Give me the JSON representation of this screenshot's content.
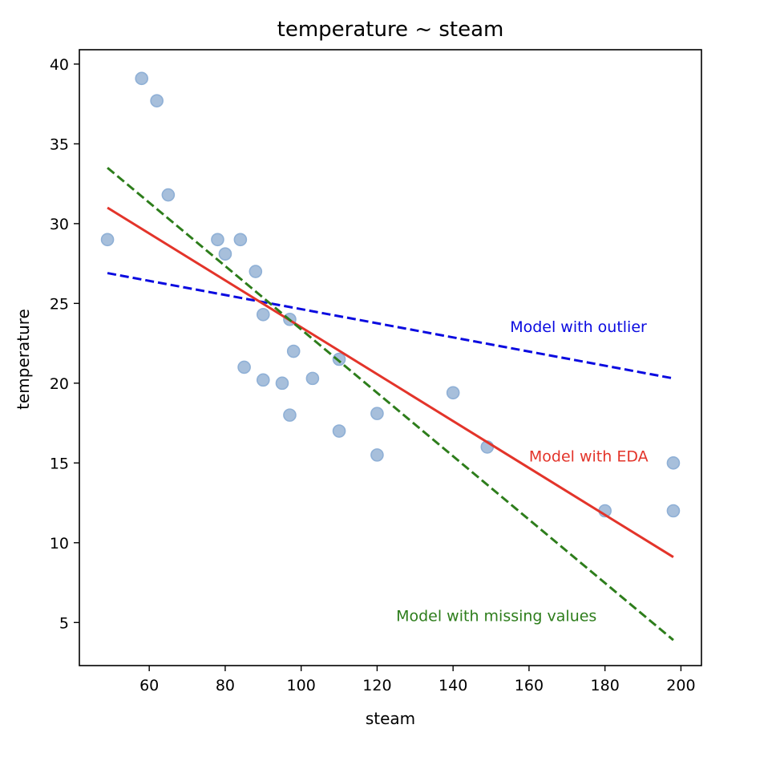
{
  "chart_data": {
    "type": "scatter",
    "title": "temperature ~ steam",
    "xlabel": "steam",
    "ylabel": "temperature",
    "xlim": [
      41.6,
      205.4
    ],
    "ylim": [
      2.3,
      40.9
    ],
    "xticks": [
      60,
      80,
      100,
      120,
      140,
      160,
      180,
      200
    ],
    "yticks": [
      5,
      10,
      15,
      20,
      25,
      30,
      35,
      40
    ],
    "grid": false,
    "points": {
      "color": "#a7bfdb",
      "edge_color": "#8fb0d6",
      "x": [
        49,
        58,
        62,
        65,
        78,
        80,
        84,
        88,
        90,
        97,
        98,
        110,
        85,
        90,
        95,
        103,
        97,
        110,
        120,
        120,
        140,
        149,
        180,
        198,
        198
      ],
      "y": [
        29,
        39.1,
        37.7,
        31.8,
        29,
        28.1,
        29,
        27,
        24.3,
        24,
        22,
        21.5,
        21,
        20.2,
        20,
        20.3,
        18,
        17,
        18.1,
        15.5,
        19.4,
        16,
        12,
        15,
        12
      ]
    },
    "series": [
      {
        "name": "Model with outlier",
        "style": "dashed",
        "color": "#0a0ae0",
        "x": [
          49,
          198
        ],
        "y": [
          26.9,
          20.3
        ]
      },
      {
        "name": "Model with EDA",
        "style": "solid",
        "color": "#e3342a",
        "x": [
          49,
          198
        ],
        "y": [
          31.0,
          9.1
        ]
      },
      {
        "name": "Model with missing values",
        "style": "dashed",
        "color": "#2d7d1b",
        "x": [
          49,
          198
        ],
        "y": [
          33.5,
          3.9
        ]
      }
    ],
    "annotations": [
      {
        "text": "Model with outlier",
        "x": 155,
        "y": 23.2,
        "color": "#0a0ae0"
      },
      {
        "text": "Model with EDA",
        "x": 160,
        "y": 15.1,
        "color": "#e3342a"
      },
      {
        "text": "Model with missing values",
        "x": 125,
        "y": 5.1,
        "color": "#2d7d1b"
      }
    ]
  }
}
